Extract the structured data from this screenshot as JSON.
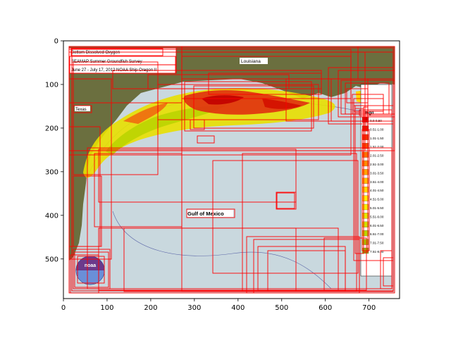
{
  "figure": {
    "x_ticks": [
      "0",
      "100",
      "200",
      "300",
      "400",
      "500",
      "600",
      "700"
    ],
    "y_ticks": [
      "0",
      "100",
      "200",
      "300",
      "400",
      "500"
    ]
  },
  "map": {
    "title_lines": [
      "Bottom Dissolved Oxygen",
      "SEAMAP Summer Groundfish Survey",
      "June 27 - July 17, 2012 NOAA Ship Oregon II"
    ],
    "place_labels": {
      "louisiana": "Louisiana",
      "texas": "Texas",
      "gulf": "Gulf of Mexico"
    },
    "legend": {
      "unit": "mg/l",
      "entries": [
        "0.0-0.50",
        "0.51-1.00",
        "1.01-1.50",
        "1.51-2.00",
        "2.01-2.50",
        "2.51-3.00",
        "3.01-3.50",
        "3.51-4.00",
        "4.01-4.50",
        "4.51-5.00",
        "5.01-5.50",
        "5.51-6.00",
        "6.01-6.50",
        "6.51-7.00",
        "7.01-7.50",
        "7.51-8.00"
      ],
      "colors": [
        "#cc0000",
        "#e01a00",
        "#ee3300",
        "#f55200",
        "#f97000",
        "#fb8c00",
        "#fda600",
        "#fec000",
        "#ffd800",
        "#ffee00",
        "#f4f000",
        "#e2e800",
        "#cede00",
        "#b8d400",
        "#a2c800",
        "#8cbc00"
      ]
    },
    "logo_text": "noaa",
    "colors": {
      "water": "#c9d8de",
      "land": "#6b6f3f",
      "hypoxic": "#e03010",
      "annotation_boxes": "#ff0000"
    }
  }
}
